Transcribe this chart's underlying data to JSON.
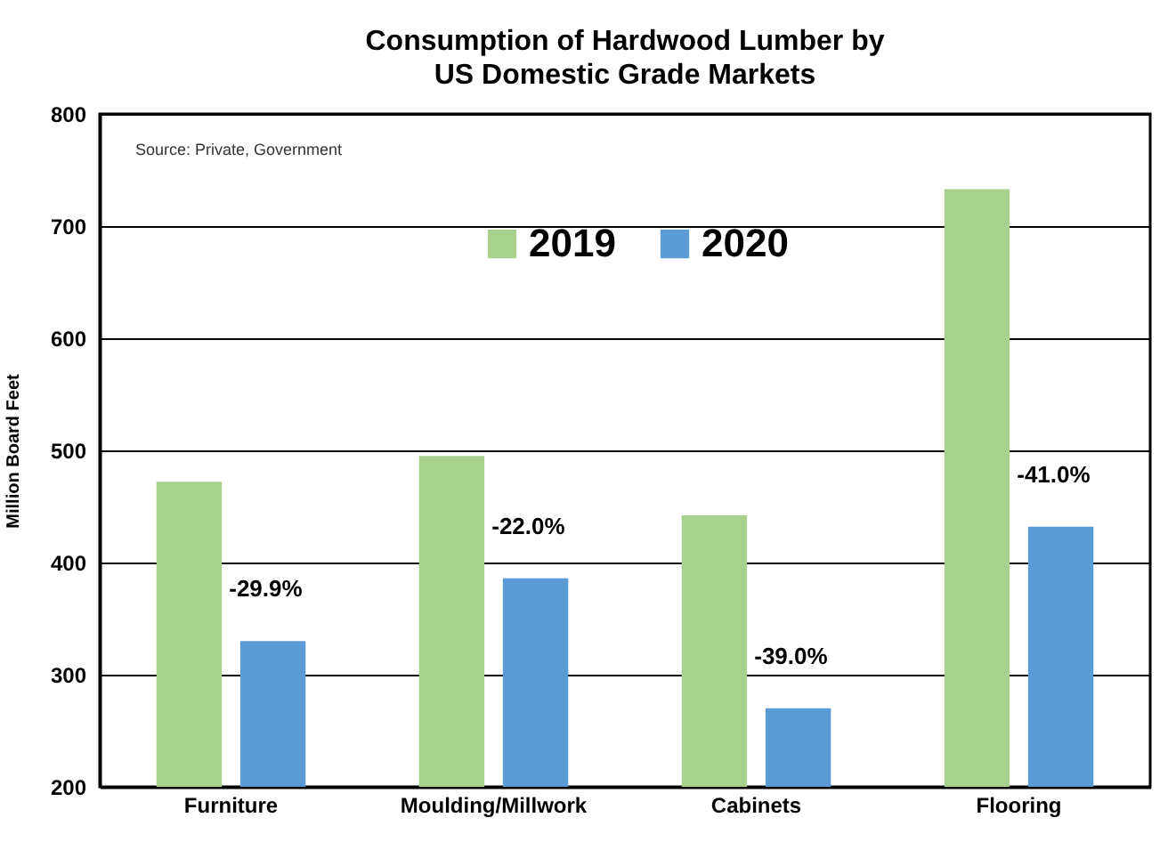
{
  "chart_data": {
    "type": "bar",
    "title": "Consumption of Hardwood Lumber by\nUS Domestic Grade Markets",
    "ylabel": "Million Board Feet",
    "categories": [
      "Furniture",
      "Moulding/Millwork",
      "Cabinets",
      "Flooring"
    ],
    "series": [
      {
        "name": "2019",
        "color": "#a9d18e",
        "values": [
          472,
          495,
          442,
          733
        ]
      },
      {
        "name": "2020",
        "color": "#5b9bd5",
        "values": [
          330,
          386,
          270,
          432
        ]
      }
    ],
    "ylim": [
      200,
      800
    ],
    "yticks": [
      200,
      300,
      400,
      500,
      600,
      700,
      800
    ],
    "grid": "y",
    "legend": "top",
    "annotations": [
      "Source: Private, Government",
      "-29.9%",
      "-22.0%",
      "-39.0%",
      "-41.0%"
    ]
  }
}
